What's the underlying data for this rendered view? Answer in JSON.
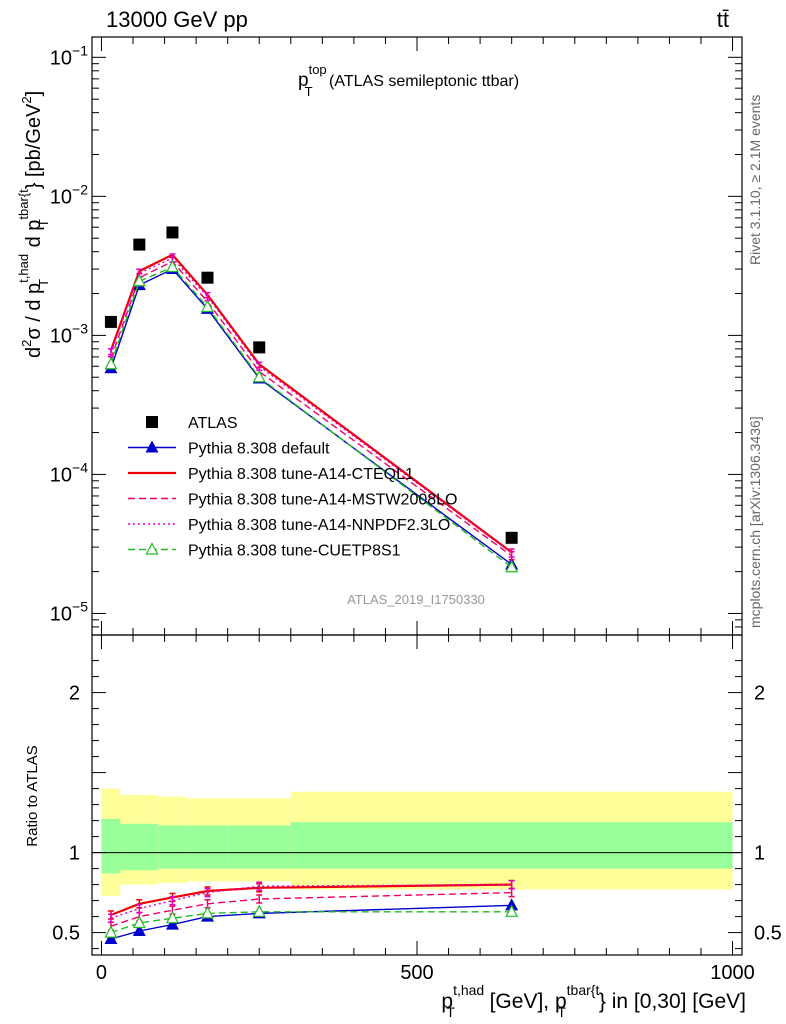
{
  "header": {
    "left": "13000 GeV pp",
    "right": "tt̄"
  },
  "side": {
    "rivet": "Rivet 3.1.10, ≥ 2.1M events",
    "mcplots": "mcplots.cern.ch [arXiv:1306.3436]"
  },
  "chart_data": [
    {
      "type": "line",
      "panel": "main",
      "title_main": "p",
      "title_sup": "top",
      "title_sub": "T",
      "title_rest": " (ATLAS semileptonic ttbar)",
      "watermark": "ATLAS_2019_I1750330",
      "ylabel": {
        "a": "d",
        "a_sup": "2",
        "b": "σ / d p",
        "b_sub": "T",
        "b_sup": "t,had",
        "c": " d p",
        "c_sub": "T",
        "c_sup": "tbar{t",
        "d": "} [pb/GeV",
        "d_sup": "2",
        "e": "]"
      },
      "yscale": "log",
      "ylim": [
        7e-06,
        0.14
      ],
      "xlim": [
        -15,
        1015
      ],
      "y_ticks": [
        {
          "value": 0.1,
          "base": "10",
          "exp": "−1"
        },
        {
          "value": 0.01,
          "base": "10",
          "exp": "−2"
        },
        {
          "value": 0.001,
          "base": "10",
          "exp": "−3"
        },
        {
          "value": 0.0001,
          "base": "10",
          "exp": "−4"
        },
        {
          "value": 1e-05,
          "base": "10",
          "exp": "−5"
        }
      ],
      "legend_position": "center-left",
      "x": [
        15,
        60,
        112.5,
        168,
        250,
        650
      ],
      "series": [
        {
          "name": "ATLAS",
          "color": "#000000",
          "style": "solid",
          "marker": "square",
          "values": [
            0.00125,
            0.0045,
            0.0055,
            0.0026,
            0.00082,
            3.5e-05
          ]
        },
        {
          "name": "Pythia 8.308 default",
          "color": "#0000cc",
          "style": "solid",
          "marker": "triangle-filled",
          "values": [
            0.00058,
            0.0023,
            0.003,
            0.00155,
            0.00049,
            2.25e-05
          ]
        },
        {
          "name": "Pythia 8.308 tune-A14-CTEQL1",
          "color": "#ee0000",
          "style": "solid",
          "width": 2.2,
          "marker": "none",
          "values": [
            0.00078,
            0.0029,
            0.0038,
            0.00196,
            0.00062,
            2.75e-05
          ]
        },
        {
          "name": "Pythia 8.308 tune-A14-MSTW2008LO",
          "color": "#ee0066",
          "style": "dashed",
          "marker": "tick",
          "values": [
            0.00068,
            0.0026,
            0.0034,
            0.00175,
            0.00055,
            2.6e-05
          ]
        },
        {
          "name": "Pythia 8.308 tune-A14-NNPDF2.3LO",
          "color": "#dd00cc",
          "style": "dotted",
          "marker": "tick",
          "values": [
            0.00075,
            0.0028,
            0.0036,
            0.0019,
            0.0006,
            2.72e-05
          ]
        },
        {
          "name": "Pythia 8.308 tune-CUETP8S1",
          "color": "#22bb22",
          "style": "dashed",
          "marker": "triangle-open",
          "values": [
            0.00062,
            0.00245,
            0.0031,
            0.0016,
            0.0005,
            2.15e-05
          ]
        }
      ]
    },
    {
      "type": "line",
      "panel": "ratio",
      "ylabel": "Ratio to ATLAS",
      "ylim": [
        0.36,
        2.36
      ],
      "xlim": [
        -15,
        1015
      ],
      "y_ticks": [
        0.5,
        1,
        2
      ],
      "y_tick_labels": [
        "0.5",
        "1",
        "2"
      ],
      "x_ticks": [
        0,
        500,
        1000
      ],
      "x_tick_labels": [
        "0",
        "500",
        "1000"
      ],
      "xlabel": {
        "a": "p",
        "a_sub": "T",
        "a_sup": "t,had",
        "b": " [GeV], p",
        "b_sub": "T",
        "b_sup": "tbar{t",
        "c": "} in [0,30] [GeV]"
      },
      "bin_edges": [
        0,
        30,
        90,
        135,
        200,
        300,
        1000
      ],
      "band_total_lo": [
        0.73,
        0.8,
        0.81,
        0.82,
        0.82,
        0.77
      ],
      "band_total_hi": [
        1.4,
        1.36,
        1.35,
        1.34,
        1.34,
        1.38
      ],
      "band_stat_lo": [
        0.87,
        0.89,
        0.9,
        0.9,
        0.9,
        0.9
      ],
      "band_stat_hi": [
        1.21,
        1.18,
        1.17,
        1.17,
        1.17,
        1.19
      ],
      "band_total_color": "#ffff99",
      "band_stat_color": "#99ff99",
      "x": [
        15,
        60,
        112.5,
        168,
        250,
        650
      ],
      "series": [
        {
          "name": "Pythia 8.308 default",
          "color": "#0000cc",
          "style": "solid",
          "marker": "triangle-filled",
          "values": [
            0.46,
            0.51,
            0.55,
            0.6,
            0.62,
            0.67
          ]
        },
        {
          "name": "Pythia 8.308 tune-A14-CTEQL1",
          "color": "#ee0000",
          "style": "solid",
          "width": 2.2,
          "marker": "tick",
          "values": [
            0.61,
            0.68,
            0.72,
            0.76,
            0.78,
            0.8
          ]
        },
        {
          "name": "Pythia 8.308 tune-A14-MSTW2008LO",
          "color": "#ee0066",
          "style": "dashed",
          "marker": "tick",
          "values": [
            0.54,
            0.6,
            0.64,
            0.68,
            0.71,
            0.75
          ]
        },
        {
          "name": "Pythia 8.308 tune-A14-NNPDF2.3LO",
          "color": "#dd00cc",
          "style": "dotted",
          "marker": "tick",
          "values": [
            0.59,
            0.65,
            0.7,
            0.75,
            0.79,
            0.8
          ]
        },
        {
          "name": "Pythia 8.308 tune-CUETP8S1",
          "color": "#22bb22",
          "style": "dashed",
          "marker": "triangle-open",
          "values": [
            0.5,
            0.56,
            0.59,
            0.62,
            0.63,
            0.63
          ]
        }
      ]
    }
  ]
}
